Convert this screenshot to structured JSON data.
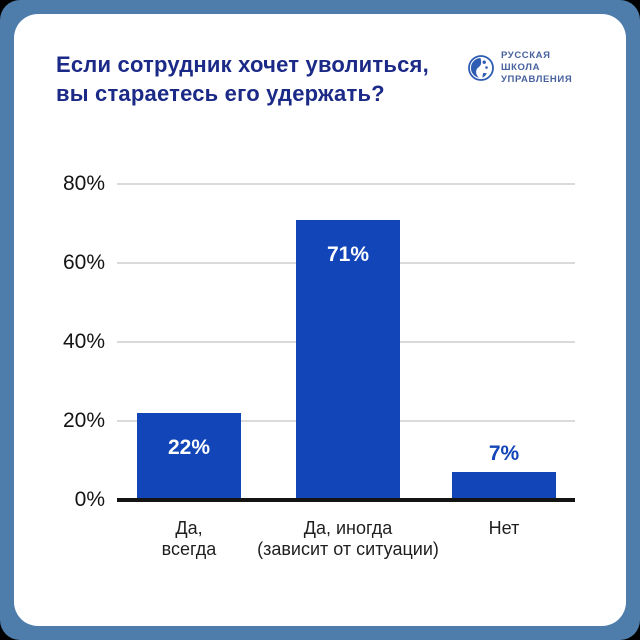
{
  "frame": {
    "outer_background": "#000000",
    "border_color": "#4e7dac",
    "card_background": "#ffffff"
  },
  "header": {
    "title_line1": "Если сотрудник хочет уволиться,",
    "title_line2": "вы стараетесь его удержать?",
    "title_color": "#1c2a87",
    "logo": {
      "icon": "globe-icon",
      "icon_color": "#2e5cb3",
      "line1": "РУССКАЯ",
      "line2": "ШКОЛА",
      "line3": "УПРАВЛЕНИЯ",
      "text_color": "#47619e"
    }
  },
  "chart_data": {
    "type": "bar",
    "title": "Если сотрудник хочет уволиться, вы стараетесь его удержать?",
    "categories": [
      [
        "Да,",
        "всегда"
      ],
      [
        "Да, иногда",
        "(зависит от ситуации)"
      ],
      [
        "Нет"
      ]
    ],
    "values": [
      22,
      71,
      7
    ],
    "value_labels": [
      "22%",
      "71%",
      "7%"
    ],
    "xlabel": "",
    "ylabel": "",
    "ylim": [
      0,
      80
    ],
    "yticks": [
      0,
      20,
      40,
      60,
      80
    ],
    "ytick_labels": [
      "0%",
      "20%",
      "40%",
      "60%",
      "80%"
    ],
    "grid": true,
    "legend": false,
    "bar_color": "#1245b7",
    "label_inside_color": "#ffffff",
    "label_outside_color": "#1245b7",
    "gridline_color": "#dadada",
    "axis_color": "#141414"
  }
}
